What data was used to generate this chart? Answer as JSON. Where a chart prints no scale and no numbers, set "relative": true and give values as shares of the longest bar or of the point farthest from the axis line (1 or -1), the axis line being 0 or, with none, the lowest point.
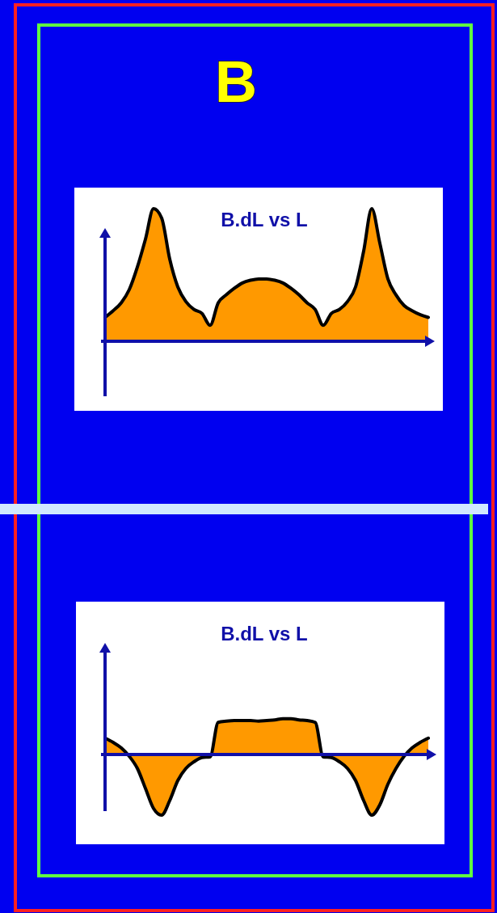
{
  "chart_data": [
    {
      "type": "other",
      "title": "B"
    },
    {
      "type": "area",
      "title": "B.dL vs L",
      "relative": true,
      "categories": [
        null,
        null,
        null,
        null,
        null,
        null,
        null,
        null,
        null,
        null,
        null,
        null,
        null,
        null,
        null,
        null,
        null,
        null,
        null,
        null,
        null,
        null,
        null,
        null,
        null,
        null,
        null,
        null,
        null,
        null,
        null,
        null,
        null,
        null,
        null,
        null,
        null,
        null,
        null,
        null,
        null
      ],
      "series": [
        {
          "color": "#ff9900",
          "values": [
            0.18,
            0.23,
            0.29,
            0.39,
            0.56,
            0.77,
            1.0,
            0.93,
            0.62,
            0.41,
            0.3,
            0.24,
            0.21,
            0.12,
            0.29,
            0.35,
            0.4,
            0.44,
            0.46,
            0.47,
            0.47,
            0.46,
            0.44,
            0.4,
            0.35,
            0.29,
            0.24,
            0.12,
            0.21,
            0.24,
            0.3,
            0.41,
            0.68,
            1.0,
            0.74,
            0.47,
            0.35,
            0.27,
            0.23,
            0.2,
            0.18
          ]
        }
      ]
    },
    {
      "type": "area",
      "title": "B.dL vs L",
      "relative": true,
      "ref_lines": [
        {
          "axis": "y",
          "value": 0,
          "color": "#1010a8"
        }
      ],
      "categories": [
        null,
        null,
        null,
        null,
        null,
        null,
        null,
        null,
        null,
        null,
        null,
        null,
        null,
        null,
        null,
        null,
        null,
        null,
        null,
        null,
        null,
        null,
        null,
        null,
        null,
        null,
        null,
        null,
        null,
        null,
        null,
        null,
        null,
        null,
        null,
        null,
        null,
        null,
        null,
        null,
        null
      ],
      "series": [
        {
          "color": "#ff9900",
          "values": [
            0.27,
            0.2,
            0.11,
            -0.03,
            -0.23,
            -0.56,
            -0.89,
            -1.0,
            -0.76,
            -0.43,
            -0.23,
            -0.12,
            -0.05,
            -0.04,
            0.53,
            0.55,
            0.56,
            0.56,
            0.56,
            0.55,
            0.56,
            0.57,
            0.59,
            0.59,
            0.57,
            0.56,
            0.53,
            -0.04,
            -0.05,
            -0.12,
            -0.23,
            -0.43,
            -0.76,
            -1.0,
            -0.83,
            -0.49,
            -0.23,
            -0.03,
            0.11,
            0.2,
            0.27
          ]
        }
      ]
    }
  ]
}
